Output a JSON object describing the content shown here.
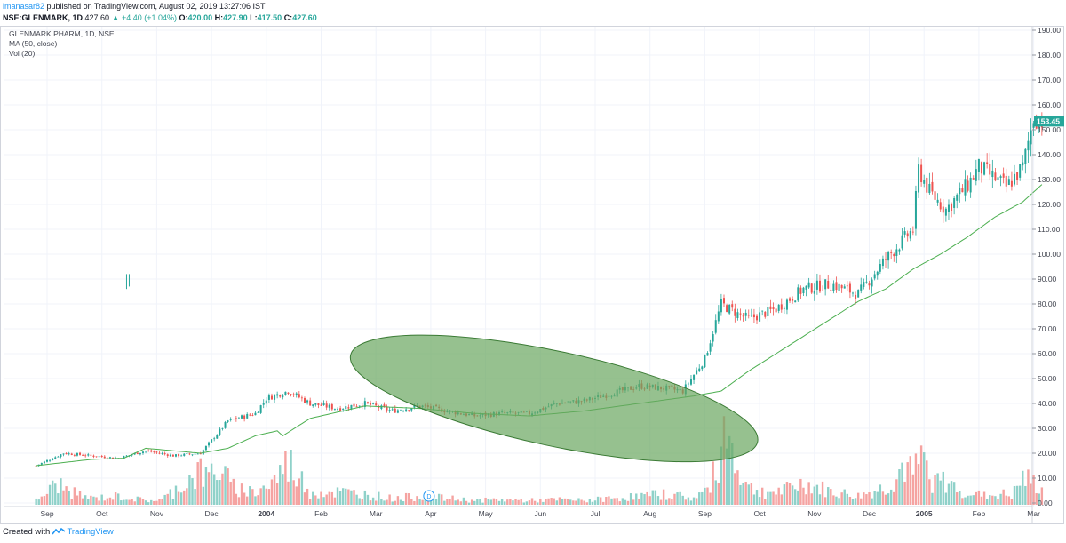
{
  "header": {
    "user": "imanasar82",
    "published_text": "published on TradingView.com, August 02, 2019 13:27:06 IST",
    "symbol": "NSE:GLENMARK, 1D",
    "last": "427.60",
    "change": "▲ +4.40 (+1.04%)",
    "ohlc": {
      "o_label": "O:",
      "o": "420.00",
      "h_label": "H:",
      "h": "427.90",
      "l_label": "L:",
      "l": "417.50",
      "c_label": "C:",
      "c": "427.60"
    }
  },
  "legend": {
    "title": "GLENMARK PHARM, 1D, NSE",
    "ma": "MA (50, close)",
    "vol": "Vol (20)"
  },
  "footer": {
    "created": "Created with",
    "brand": "TradingView"
  },
  "dividend_marker": "D",
  "colors": {
    "up": "#26a69a",
    "down": "#ef5350",
    "vol_up": "#8fd1c9",
    "vol_down": "#f5a3a1",
    "ma": "#4caf50",
    "ellipse_fill": "#6aa760",
    "ellipse_stroke": "#3a7a34",
    "price_badge": "#26a69a",
    "accent": "#2196f3"
  },
  "chart_data": {
    "type": "candlestick",
    "title": "GLENMARK PHARM, 1D, NSE",
    "price_axis": {
      "ticks": [
        190,
        180,
        170,
        160,
        150,
        140,
        130,
        120,
        110,
        100,
        90,
        80,
        70,
        60,
        50,
        40,
        30,
        20,
        10,
        0
      ],
      "labels": [
        "190.00",
        "180.00",
        "170.00",
        "160.00",
        "150.00",
        "140.00",
        "130.00",
        "120.00",
        "110.00",
        "100.00",
        "90.00",
        "80.00",
        "70.00",
        "60.00",
        "50.00",
        "40.00",
        "30.00",
        "20.00",
        "10.00",
        "0.00"
      ],
      "range": [
        0,
        195
      ]
    },
    "last_price": "153.45",
    "x_labels": [
      "Sep",
      "Oct",
      "Nov",
      "Dec",
      "2004",
      "Feb",
      "Mar",
      "Apr",
      "May",
      "Jun",
      "Jul",
      "Aug",
      "Sep",
      "Oct",
      "Nov",
      "Dec",
      "2005",
      "Feb",
      "Mar"
    ],
    "price_series": {
      "t": [
        0,
        0.5,
        1,
        1.5,
        2,
        2.5,
        3,
        3.5,
        4,
        4.2,
        4.6,
        5,
        5.5,
        6,
        6.5,
        7,
        7.5,
        8,
        8.5,
        9,
        9.5,
        10,
        10.5,
        11,
        11.5,
        11.8,
        12.2,
        12.5,
        12.8,
        13,
        13.5,
        14,
        14.5,
        15,
        15.5,
        16,
        16.1,
        16.3,
        16.6,
        17,
        17.2,
        17.4,
        17.7,
        18,
        18.2,
        18.4
      ],
      "close": [
        15,
        20,
        19,
        18,
        21,
        19,
        20,
        33,
        36,
        42,
        45,
        40,
        38,
        40,
        37,
        39,
        37,
        35,
        36,
        36,
        40,
        41,
        44,
        47,
        46,
        45,
        58,
        80,
        76,
        74,
        78,
        86,
        88,
        84,
        98,
        110,
        134,
        125,
        118,
        128,
        135,
        132,
        127,
        135,
        155,
        153
      ]
    },
    "ma_series": {
      "t": [
        0,
        1,
        1.6,
        2,
        3,
        3.5,
        4,
        4.4,
        4.5,
        5,
        6,
        7,
        8,
        9,
        10,
        11,
        12,
        12.5,
        13,
        13.5,
        14,
        15,
        15.5,
        16,
        16.5,
        17,
        17.5,
        18,
        18.4
      ],
      "value": [
        15,
        17.5,
        18,
        22,
        20,
        22,
        27,
        29,
        27,
        34,
        39,
        38,
        36,
        35,
        37,
        40,
        43,
        45,
        53,
        60,
        67,
        81,
        86,
        94,
        100,
        107,
        115,
        121,
        129
      ]
    },
    "volume_series": {
      "t": [
        0,
        0.4,
        0.6,
        1,
        1.5,
        2,
        2.3,
        3,
        3.1,
        3.3,
        3.6,
        4,
        4.3,
        4.6,
        5,
        5.5,
        6,
        6.5,
        7,
        7.5,
        8,
        8.5,
        9,
        9.5,
        10,
        10.5,
        11,
        11.5,
        11.8,
        12,
        12.3,
        12.6,
        12.7,
        12.8,
        13,
        13.3,
        13.6,
        14,
        14.5,
        15,
        15.5,
        15.7,
        15.8,
        16,
        16.1,
        16.2,
        16.3,
        16.6,
        17,
        17.3,
        17.6,
        17.8,
        18,
        18.2,
        18.4
      ],
      "rel": [
        0.1,
        0.5,
        0.3,
        0.15,
        0.2,
        0.1,
        0.12,
        0.8,
        0.6,
        0.9,
        0.4,
        0.3,
        0.5,
        1.0,
        0.3,
        0.3,
        0.25,
        0.15,
        0.2,
        0.15,
        0.1,
        0.12,
        0.1,
        0.12,
        0.1,
        0.15,
        0.2,
        0.25,
        0.2,
        0.15,
        0.4,
        1.9,
        1.3,
        0.9,
        0.4,
        0.3,
        0.3,
        0.5,
        0.3,
        0.2,
        0.4,
        0.6,
        0.9,
        0.7,
        0.9,
        1.1,
        0.6,
        0.5,
        0.3,
        0.2,
        0.25,
        0.2,
        0.6,
        0.5,
        0.3
      ],
      "up": [
        true,
        true,
        false,
        true,
        true,
        false,
        true,
        true,
        false,
        true,
        false,
        false,
        true,
        false,
        true,
        false,
        true,
        false,
        true,
        false,
        true,
        false,
        true,
        false,
        true,
        false,
        true,
        false,
        true,
        false,
        true,
        false,
        false,
        true,
        false,
        true,
        false,
        true,
        false,
        true,
        false,
        true,
        false,
        true,
        false,
        false,
        true,
        false,
        true,
        false,
        true,
        false,
        true,
        true,
        false
      ]
    },
    "ellipse_annotation": {
      "center_t": 9.45,
      "center_price": 42,
      "radius_t": 7.3,
      "radius_price": 20,
      "rotation_deg": 12
    },
    "outlier_tick": {
      "t": 1.65,
      "price": 89
    },
    "grid": true,
    "legend_position": "top-left"
  }
}
